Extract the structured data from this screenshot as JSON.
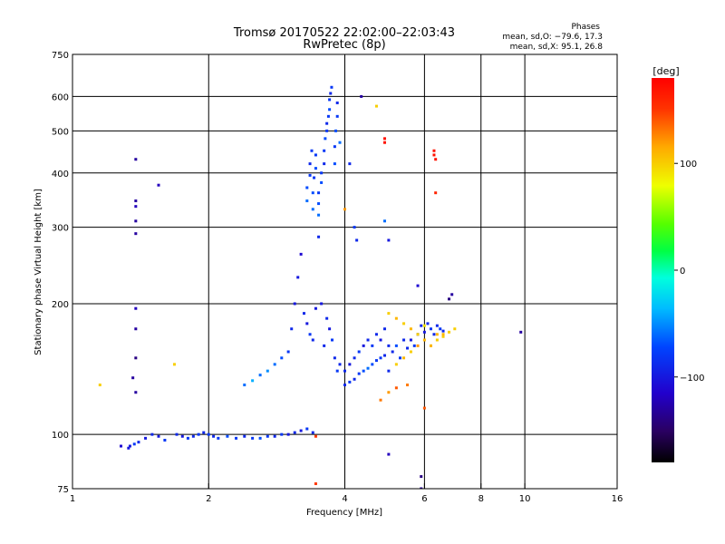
{
  "chart_data": {
    "type": "scatter",
    "title": "Tromsø 20170522 22:02:00–22:03:43",
    "subtitle": "RwPretec (8p)",
    "xlabel": "Frequency [MHz]",
    "ylabel": "Stationary phase Virtual Height [km]",
    "xscale": "log2",
    "yscale": "log",
    "xlim": [
      1,
      16
    ],
    "ylim": [
      75,
      750
    ],
    "x_ticks": [
      "1",
      "2",
      "4",
      "6",
      "8",
      "10",
      "16"
    ],
    "y_ticks": [
      "750",
      "600",
      "500",
      "400",
      "300",
      "200",
      "100",
      "75"
    ],
    "x_grid": [
      2,
      4,
      6,
      8,
      10
    ],
    "y_grid": [
      600,
      500,
      400,
      300,
      200,
      100
    ],
    "grid": true,
    "annotation": {
      "heading": "Phases",
      "line1": "mean, sd,O: −79.6, 17.3",
      "line2": "mean, sd,X:  95.1, 26.8"
    },
    "colorbar": {
      "label": "[deg]",
      "ticks": [
        "100",
        "0",
        "−100"
      ],
      "tick_values": [
        100,
        0,
        -100
      ],
      "range": [
        -180,
        180
      ]
    },
    "series": [
      {
        "values_note_free": true,
        "points": [
          [
            1.28,
            94,
            -110
          ],
          [
            1.33,
            93,
            -100
          ],
          [
            1.34,
            94,
            -100
          ],
          [
            1.37,
            95,
            -80
          ],
          [
            1.4,
            96,
            -90
          ],
          [
            1.45,
            98,
            -100
          ],
          [
            1.5,
            100,
            -90
          ],
          [
            1.55,
            99,
            -100
          ],
          [
            1.6,
            97,
            -80
          ],
          [
            1.7,
            100,
            -90
          ],
          [
            1.75,
            99,
            -100
          ],
          [
            1.8,
            98,
            -80
          ],
          [
            1.85,
            99,
            -90
          ],
          [
            1.9,
            100,
            -80
          ],
          [
            1.95,
            101,
            -90
          ],
          [
            2.0,
            100,
            -80
          ],
          [
            2.05,
            99,
            -90
          ],
          [
            2.1,
            98,
            -80
          ],
          [
            2.2,
            99,
            -70
          ],
          [
            2.3,
            98,
            -80
          ],
          [
            2.4,
            99,
            -90
          ],
          [
            2.5,
            98,
            -80
          ],
          [
            2.6,
            98,
            -70
          ],
          [
            2.7,
            99,
            -80
          ],
          [
            2.8,
            99,
            -90
          ],
          [
            2.9,
            100,
            -80
          ],
          [
            3.0,
            100,
            -100
          ],
          [
            3.1,
            101,
            -90
          ],
          [
            3.2,
            102,
            -100
          ],
          [
            3.3,
            103,
            -80
          ],
          [
            3.4,
            101,
            -90
          ],
          [
            3.45,
            99,
            150
          ],
          [
            1.15,
            130,
            100
          ],
          [
            1.38,
            125,
            -130
          ],
          [
            1.38,
            150,
            -140
          ],
          [
            1.38,
            175,
            -130
          ],
          [
            1.38,
            195,
            -120
          ],
          [
            1.38,
            290,
            -130
          ],
          [
            1.38,
            310,
            -130
          ],
          [
            1.38,
            335,
            -120
          ],
          [
            1.38,
            345,
            -130
          ],
          [
            1.38,
            430,
            -130
          ],
          [
            1.55,
            375,
            -120
          ],
          [
            1.68,
            145,
            100
          ],
          [
            1.36,
            135,
            -130
          ],
          [
            2.4,
            130,
            -60
          ],
          [
            2.5,
            133,
            -40
          ],
          [
            2.6,
            137,
            -60
          ],
          [
            2.7,
            140,
            -50
          ],
          [
            2.8,
            145,
            -60
          ],
          [
            2.9,
            150,
            -70
          ],
          [
            3.0,
            155,
            -80
          ],
          [
            3.05,
            175,
            -90
          ],
          [
            3.1,
            200,
            -100
          ],
          [
            3.15,
            230,
            -100
          ],
          [
            3.2,
            260,
            -110
          ],
          [
            3.25,
            190,
            -90
          ],
          [
            3.3,
            180,
            -100
          ],
          [
            3.35,
            170,
            -80
          ],
          [
            3.4,
            165,
            -90
          ],
          [
            3.45,
            195,
            -100
          ],
          [
            3.5,
            285,
            -90
          ],
          [
            3.55,
            200,
            -100
          ],
          [
            3.6,
            160,
            -90
          ],
          [
            3.65,
            185,
            -90
          ],
          [
            3.7,
            175,
            -100
          ],
          [
            3.75,
            165,
            -80
          ],
          [
            3.8,
            150,
            -90
          ],
          [
            3.85,
            140,
            -80
          ],
          [
            3.9,
            145,
            -90
          ],
          [
            4.0,
            140,
            -90
          ],
          [
            4.1,
            145,
            -100
          ],
          [
            4.2,
            150,
            -90
          ],
          [
            4.3,
            155,
            -80
          ],
          [
            4.4,
            160,
            -100
          ],
          [
            4.5,
            165,
            -90
          ],
          [
            4.6,
            160,
            -80
          ],
          [
            4.7,
            170,
            -90
          ],
          [
            4.8,
            165,
            -100
          ],
          [
            4.9,
            175,
            -90
          ],
          [
            5.0,
            160,
            -90
          ],
          [
            5.1,
            155,
            -90
          ],
          [
            5.2,
            160,
            -70
          ],
          [
            5.3,
            150,
            -80
          ],
          [
            5.4,
            165,
            -90
          ],
          [
            5.5,
            158,
            -90
          ],
          [
            5.6,
            165,
            -100
          ],
          [
            5.7,
            160,
            -80
          ],
          [
            5.8,
            170,
            -90
          ],
          [
            5.9,
            178,
            -90
          ],
          [
            6.0,
            172,
            -100
          ],
          [
            6.1,
            180,
            -90
          ],
          [
            6.2,
            175,
            -80
          ],
          [
            6.3,
            170,
            -90
          ],
          [
            6.4,
            178,
            -90
          ],
          [
            6.5,
            175,
            -80
          ],
          [
            6.6,
            173,
            -90
          ],
          [
            6.8,
            205,
            -140
          ],
          [
            6.9,
            210,
            -130
          ],
          [
            9.8,
            172,
            -130
          ],
          [
            4.0,
            130,
            -90
          ],
          [
            4.1,
            132,
            -80
          ],
          [
            4.2,
            134,
            -90
          ],
          [
            4.3,
            138,
            -80
          ],
          [
            4.4,
            140,
            -70
          ],
          [
            4.5,
            142,
            -60
          ],
          [
            4.6,
            145,
            -70
          ],
          [
            4.7,
            148,
            -80
          ],
          [
            4.8,
            150,
            -80
          ],
          [
            4.9,
            152,
            -90
          ],
          [
            5.0,
            140,
            -90
          ],
          [
            5.2,
            145,
            100
          ],
          [
            5.4,
            150,
            110
          ],
          [
            5.6,
            155,
            100
          ],
          [
            5.8,
            160,
            120
          ],
          [
            6.0,
            165,
            110
          ],
          [
            6.2,
            160,
            100
          ],
          [
            6.4,
            170,
            110
          ],
          [
            6.6,
            168,
            100
          ],
          [
            6.8,
            172,
            100
          ],
          [
            5.0,
            190,
            100
          ],
          [
            5.2,
            185,
            110
          ],
          [
            5.4,
            180,
            100
          ],
          [
            5.6,
            175,
            110
          ],
          [
            5.8,
            170,
            100
          ],
          [
            6.0,
            178,
            90
          ],
          [
            6.2,
            160,
            110
          ],
          [
            6.4,
            165,
            100
          ],
          [
            6.6,
            170,
            110
          ],
          [
            7.0,
            175,
            100
          ],
          [
            4.8,
            120,
            130
          ],
          [
            5.0,
            125,
            120
          ],
          [
            5.2,
            128,
            140
          ],
          [
            5.5,
            130,
            130
          ],
          [
            6.0,
            115,
            140
          ],
          [
            3.5,
            320,
            -60
          ],
          [
            3.5,
            340,
            -70
          ],
          [
            3.5,
            360,
            -80
          ],
          [
            3.55,
            380,
            -70
          ],
          [
            3.55,
            400,
            -80
          ],
          [
            3.6,
            420,
            -90
          ],
          [
            3.6,
            450,
            -80
          ],
          [
            3.62,
            480,
            -70
          ],
          [
            3.65,
            500,
            -80
          ],
          [
            3.65,
            520,
            -90
          ],
          [
            3.68,
            540,
            -80
          ],
          [
            3.7,
            560,
            -70
          ],
          [
            3.7,
            590,
            -80
          ],
          [
            3.72,
            610,
            -90
          ],
          [
            3.74,
            630,
            -80
          ],
          [
            3.4,
            330,
            -60
          ],
          [
            3.4,
            360,
            -70
          ],
          [
            3.42,
            390,
            -80
          ],
          [
            3.45,
            410,
            -70
          ],
          [
            3.45,
            440,
            -80
          ],
          [
            3.3,
            345,
            -60
          ],
          [
            3.3,
            370,
            -70
          ],
          [
            3.35,
            395,
            -80
          ],
          [
            3.35,
            420,
            -90
          ],
          [
            3.38,
            450,
            -80
          ],
          [
            3.8,
            420,
            -70
          ],
          [
            3.8,
            460,
            -80
          ],
          [
            3.82,
            500,
            -70
          ],
          [
            3.85,
            540,
            -80
          ],
          [
            3.85,
            580,
            -90
          ],
          [
            3.9,
            470,
            -60
          ],
          [
            4.0,
            330,
            120
          ],
          [
            4.1,
            420,
            -90
          ],
          [
            4.2,
            300,
            -80
          ],
          [
            4.25,
            280,
            -90
          ],
          [
            4.35,
            600,
            -130
          ],
          [
            4.7,
            570,
            100
          ],
          [
            4.9,
            470,
            170
          ],
          [
            4.9,
            480,
            170
          ],
          [
            4.9,
            310,
            -60
          ],
          [
            5.0,
            280,
            -100
          ],
          [
            5.8,
            220,
            -110
          ],
          [
            6.3,
            450,
            170
          ],
          [
            6.3,
            440,
            170
          ],
          [
            6.35,
            430,
            170
          ],
          [
            6.35,
            360,
            160
          ],
          [
            5.9,
            80,
            -140
          ],
          [
            5.9,
            75,
            -130
          ],
          [
            3.45,
            77,
            150
          ],
          [
            5.0,
            90,
            -120
          ]
        ]
      }
    ]
  }
}
